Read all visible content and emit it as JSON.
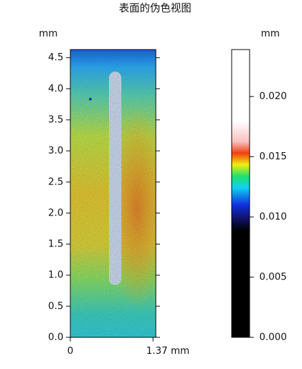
{
  "chart_data": {
    "type": "heatmap",
    "title": "表面的伪色视图",
    "ylabel": "mm",
    "colorbar_label": "mm",
    "xlim": [
      0,
      1.37
    ],
    "xticks": [
      0,
      {
        "value": 1.37,
        "label": "1.37 mm"
      }
    ],
    "ylim": [
      0,
      4.63
    ],
    "yticks": [
      {
        "value": 0,
        "label": "0.0"
      },
      0.5,
      {
        "value": 1,
        "label": "1.0"
      },
      1.5,
      {
        "value": 2,
        "label": "2.0"
      },
      2.5,
      {
        "value": 3,
        "label": "3.0"
      },
      3.5,
      {
        "value": 4,
        "label": "4.0"
      },
      4.5
    ],
    "clim": [
      0,
      0.0239
    ],
    "cticks": [
      {
        "value": 0,
        "label": "0.000"
      },
      {
        "value": 0.005,
        "label": "0.005"
      },
      {
        "value": 0.01,
        "label": "0.010"
      },
      {
        "value": 0.015,
        "label": "0.015"
      },
      {
        "value": 0.02,
        "label": "0.020"
      }
    ]
  }
}
